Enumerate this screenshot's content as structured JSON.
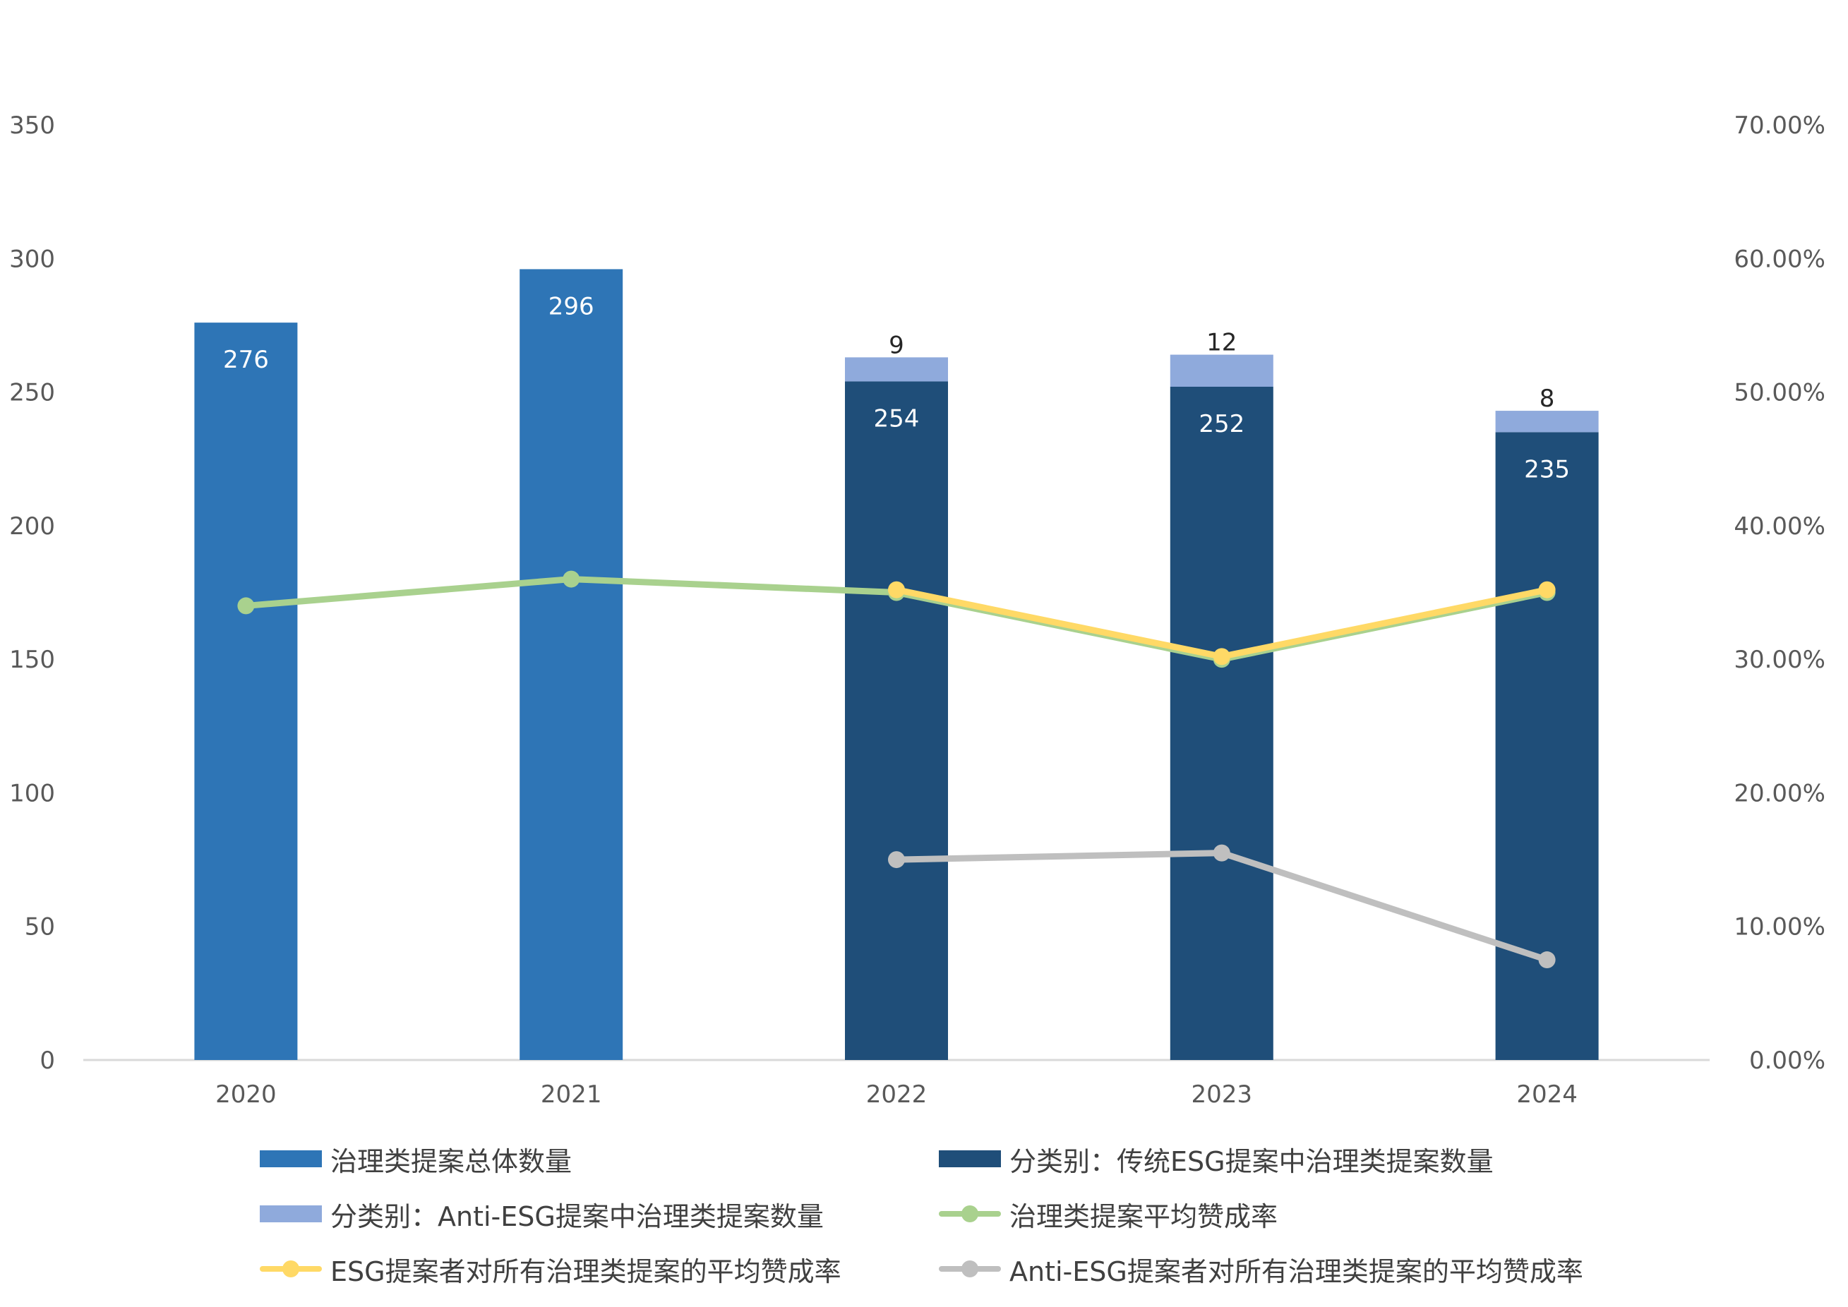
{
  "chart_data": {
    "type": "bar",
    "categories": [
      "2020",
      "2021",
      "2022",
      "2023",
      "2024"
    ],
    "y_left": {
      "ticks": [
        "0",
        "50",
        "100",
        "150",
        "200",
        "250",
        "300",
        "350"
      ],
      "ylim": [
        0,
        350
      ]
    },
    "y_right": {
      "ticks": [
        "0.00%",
        "10.00%",
        "20.00%",
        "30.00%",
        "40.00%",
        "50.00%",
        "60.00%",
        "70.00%"
      ],
      "ylim": [
        0,
        70
      ]
    },
    "grid": false,
    "legend_position": "bottom",
    "bar_series": [
      {
        "name": "治理类提案总体数量",
        "color": "#2E75B6",
        "values": [
          276,
          296,
          null,
          null,
          null
        ]
      },
      {
        "name": "分类别：传统ESG提案中治理类提案数量",
        "color": "#1F4E79",
        "values": [
          null,
          null,
          254,
          252,
          235
        ]
      },
      {
        "name": "分类别：Anti-ESG提案中治理类提案数量",
        "color": "#8FAADC",
        "values": [
          null,
          null,
          9,
          12,
          8
        ]
      }
    ],
    "line_series": [
      {
        "name": "治理类提案平均赞成率",
        "color": "#A9D18E",
        "axis": "right",
        "values": [
          34.0,
          36.0,
          35.0,
          30.0,
          35.0
        ]
      },
      {
        "name": "ESG提案者对所有治理类提案的平均赞成率",
        "color": "#FFD966",
        "axis": "right",
        "values": [
          null,
          null,
          35.2,
          30.2,
          35.2
        ]
      },
      {
        "name": "Anti-ESG提案者对所有治理类提案的平均赞成率",
        "color": "#BFBFBF",
        "axis": "right",
        "values": [
          null,
          null,
          15.0,
          15.5,
          7.5
        ]
      }
    ]
  }
}
